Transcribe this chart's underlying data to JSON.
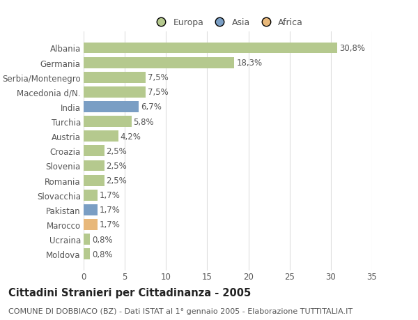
{
  "countries": [
    "Albania",
    "Germania",
    "Serbia/Montenegro",
    "Macedonia d/N.",
    "India",
    "Turchia",
    "Austria",
    "Croazia",
    "Slovenia",
    "Romania",
    "Slovacchia",
    "Pakistan",
    "Marocco",
    "Ucraina",
    "Moldova"
  ],
  "values": [
    30.8,
    18.3,
    7.5,
    7.5,
    6.7,
    5.8,
    4.2,
    2.5,
    2.5,
    2.5,
    1.7,
    1.7,
    1.7,
    0.8,
    0.8
  ],
  "labels": [
    "30,8%",
    "18,3%",
    "7,5%",
    "7,5%",
    "6,7%",
    "5,8%",
    "4,2%",
    "2,5%",
    "2,5%",
    "2,5%",
    "1,7%",
    "1,7%",
    "1,7%",
    "0,8%",
    "0,8%"
  ],
  "continents": [
    "Europa",
    "Europa",
    "Europa",
    "Europa",
    "Asia",
    "Europa",
    "Europa",
    "Europa",
    "Europa",
    "Europa",
    "Europa",
    "Asia",
    "Africa",
    "Europa",
    "Europa"
  ],
  "colors": {
    "Europa": "#b5c98e",
    "Asia": "#7a9ec4",
    "Africa": "#e8b87a"
  },
  "xlim": [
    0,
    35
  ],
  "xticks": [
    0,
    5,
    10,
    15,
    20,
    25,
    30,
    35
  ],
  "title": "Cittadini Stranieri per Cittadinanza - 2005",
  "subtitle": "COMUNE DI DOBBIACO (BZ) - Dati ISTAT al 1° gennaio 2005 - Elaborazione TUTTITALIA.IT",
  "bg_color": "#ffffff",
  "plot_bg_color": "#ffffff",
  "grid_color": "#dddddd",
  "bar_height": 0.75,
  "label_fontsize": 8.5,
  "title_fontsize": 10.5,
  "subtitle_fontsize": 8,
  "tick_fontsize": 8.5,
  "legend_fontsize": 9
}
